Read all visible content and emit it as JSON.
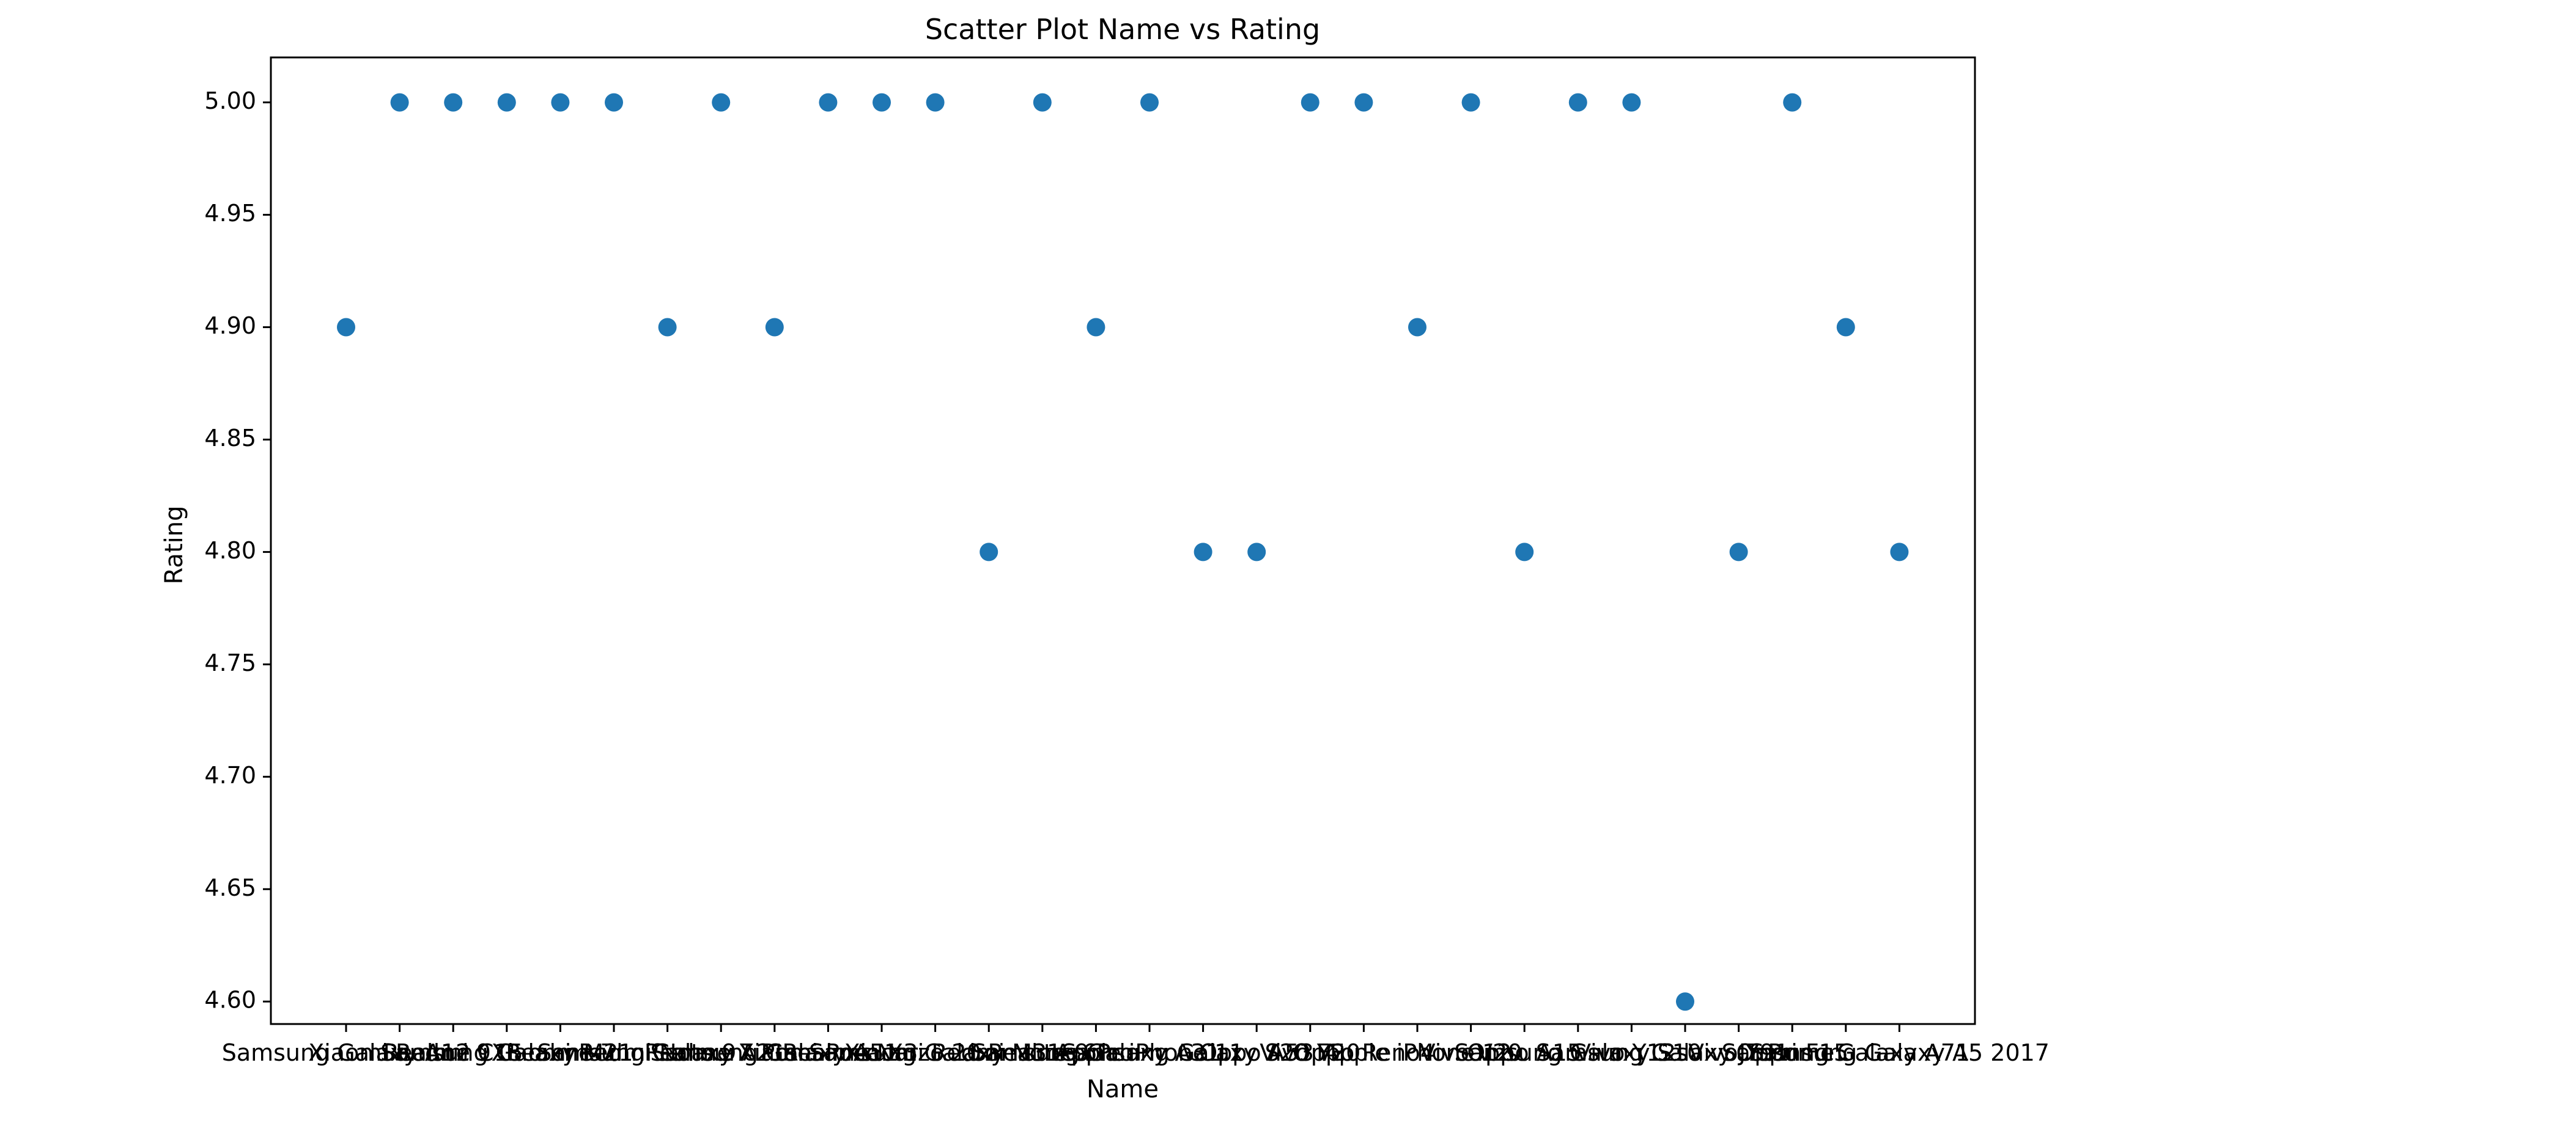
{
  "chart_data": {
    "type": "scatter",
    "title": "Scatter Plot Name vs Rating",
    "xlabel": "Name",
    "ylabel": "Rating",
    "ylim": [
      4.59,
      5.02
    ],
    "y_ticks": [
      "4.60",
      "4.65",
      "4.70",
      "4.75",
      "4.80",
      "4.85",
      "4.90",
      "4.95",
      "5.00"
    ],
    "grid": false,
    "legend": "none",
    "marker_color": "#1f77b4",
    "categories": [
      "Samsung Galaxy A12",
      "Xiaomi Redmi 9",
      "Realme C15",
      "Samsung Galaxy M21",
      "Realme 7",
      "Xiaomi Redmi Note 9",
      "Samsung Galaxy A21s",
      "Realme 7 Pro",
      "Samsung Galaxy A51",
      "Xiaomi Poco X3",
      "Realme Narzo 20",
      "Samsung Galaxy M31",
      "Xiaomi Redmi Note 9 Pro",
      "Realme 6",
      "Samsung Galaxy A31",
      "Apple iPhone 11",
      "Samsung Galaxy S20 FE",
      "Oppo A53",
      "Vivo Y20",
      "Oppo Reno4",
      "Apple iPhone 12",
      "Vivo V20",
      "Oppo A15",
      "Samsung Galaxy S10",
      "Vivo Y12s",
      "Samsung Galaxy J7 Prime",
      "Vivo Y91",
      "Oppo F15",
      "Samsung Galaxy A71",
      "Samsung Galaxy A5 2017"
    ],
    "values": [
      4.9,
      5.0,
      5.0,
      5.0,
      5.0,
      5.0,
      4.9,
      5.0,
      4.9,
      5.0,
      5.0,
      5.0,
      4.8,
      5.0,
      4.9,
      5.0,
      4.8,
      4.8,
      5.0,
      5.0,
      4.9,
      5.0,
      4.8,
      5.0,
      5.0,
      4.6,
      4.8,
      5.0,
      4.9,
      4.8
    ]
  }
}
